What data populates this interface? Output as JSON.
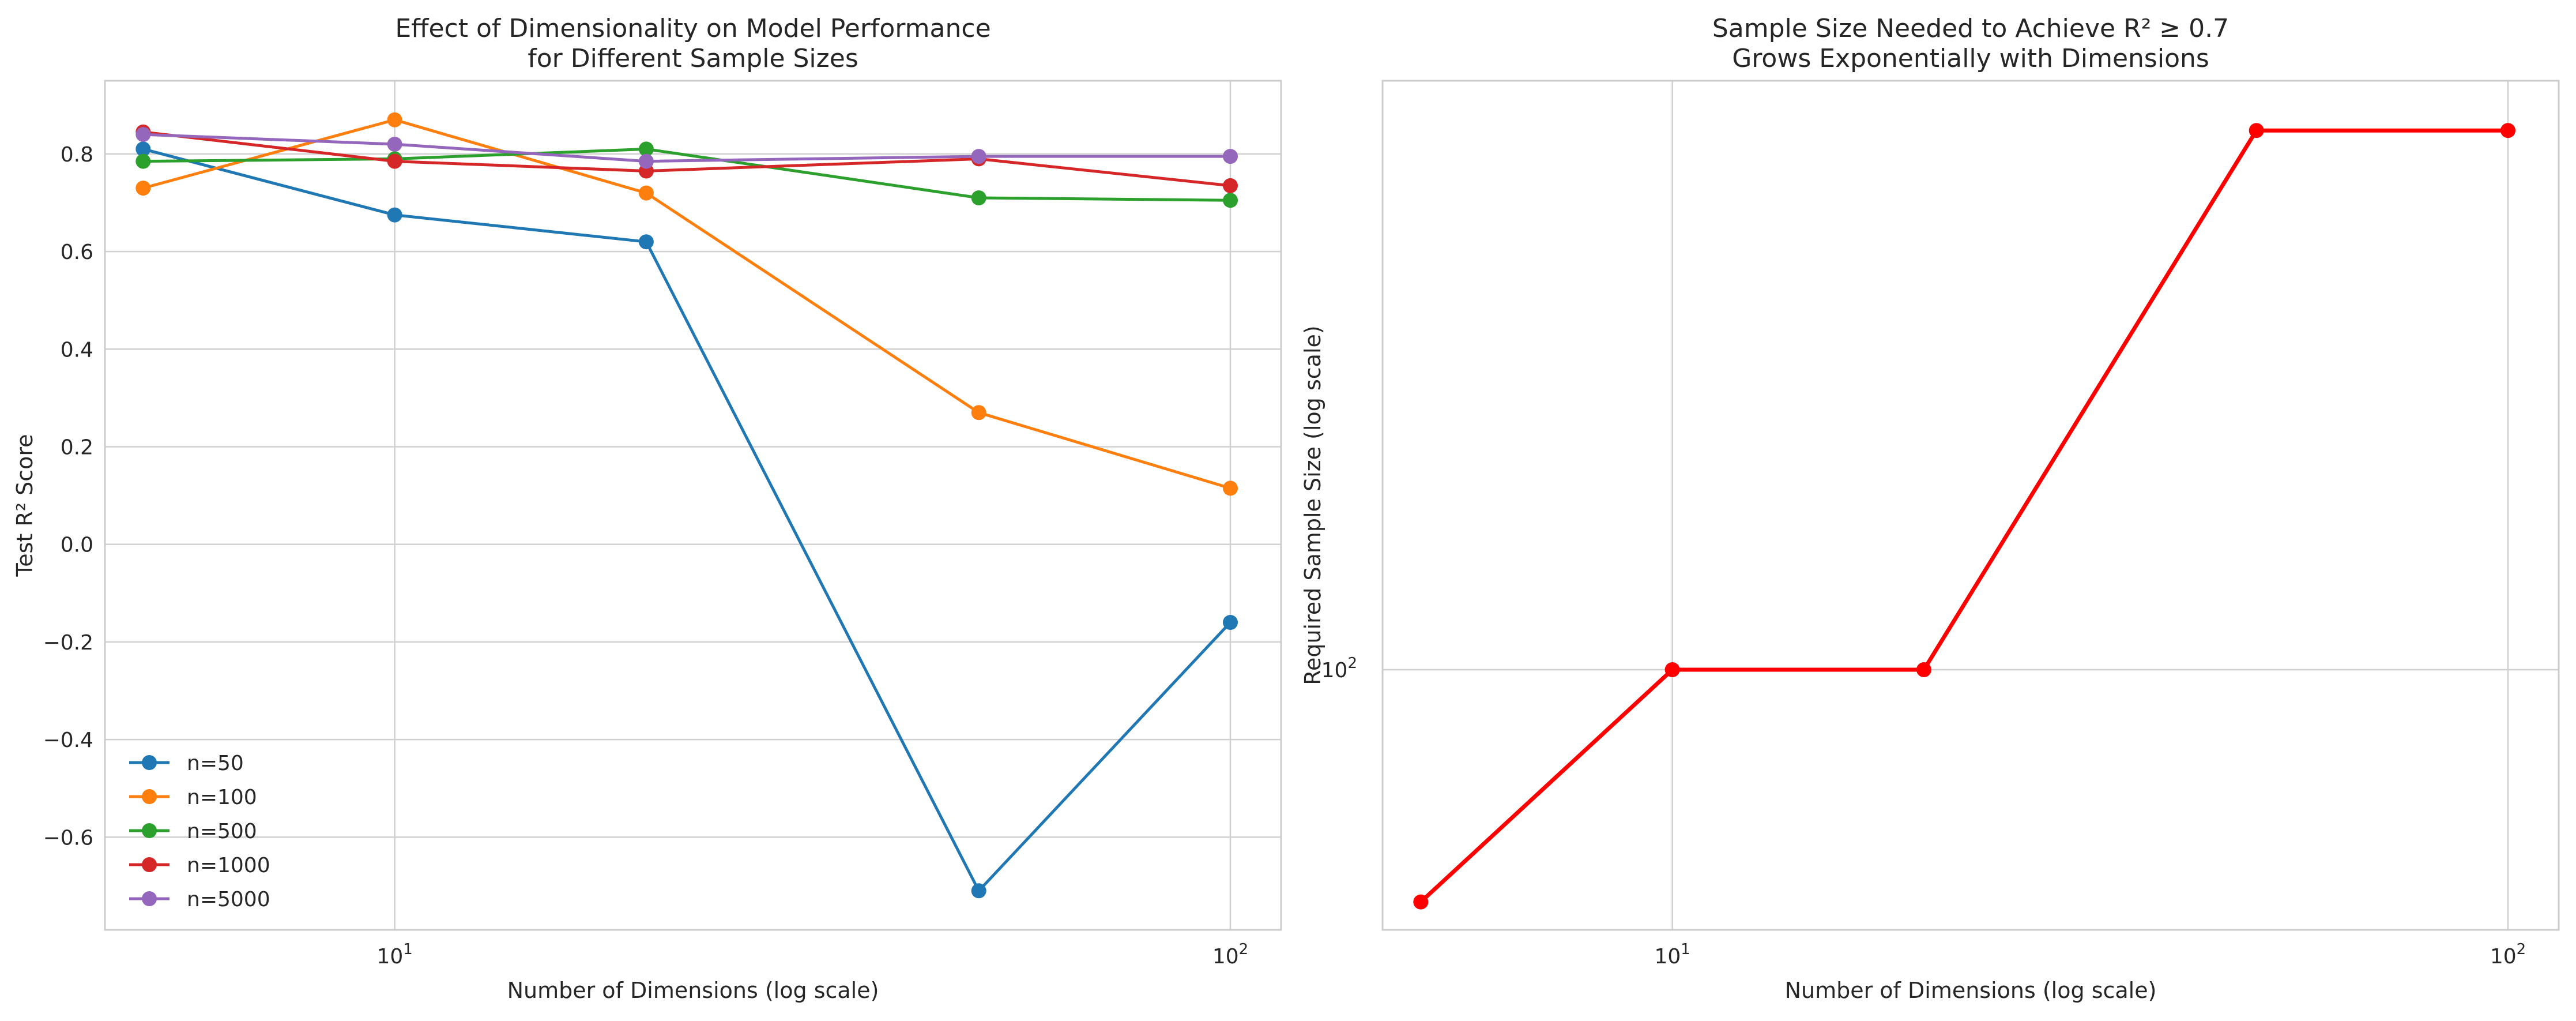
{
  "chart_data": [
    {
      "type": "line",
      "title": "Effect of Dimensionality on Model Performance\nfor Different Sample Sizes",
      "xlabel": "Number of Dimensions (log scale)",
      "ylabel": "Test R² Score",
      "xscale": "log",
      "xlim": [
        4.5,
        115
      ],
      "ylim": [
        -0.79,
        0.95
      ],
      "x": [
        5,
        10,
        20,
        50,
        100
      ],
      "xticks": [
        {
          "value": 10,
          "base": "10",
          "exp": "1"
        },
        {
          "value": 100,
          "base": "10",
          "exp": "2"
        }
      ],
      "yticks": [
        {
          "value": 0.8,
          "label": "0.8"
        },
        {
          "value": 0.6,
          "label": "0.6"
        },
        {
          "value": 0.4,
          "label": "0.4"
        },
        {
          "value": 0.2,
          "label": "0.2"
        },
        {
          "value": 0.0,
          "label": "0.0"
        },
        {
          "value": -0.2,
          "label": "−0.2"
        },
        {
          "value": -0.4,
          "label": "−0.4"
        },
        {
          "value": -0.6,
          "label": "−0.6"
        }
      ],
      "grid": true,
      "legend_position": "lower-left",
      "series": [
        {
          "name": "n=50",
          "color": "#1f77b4",
          "values": [
            0.81,
            0.675,
            0.62,
            -0.71,
            -0.16
          ]
        },
        {
          "name": "n=100",
          "color": "#ff7f0e",
          "values": [
            0.73,
            0.87,
            0.72,
            0.27,
            0.115
          ]
        },
        {
          "name": "n=500",
          "color": "#2ca02c",
          "values": [
            0.785,
            0.79,
            0.81,
            0.71,
            0.705
          ]
        },
        {
          "name": "n=1000",
          "color": "#d62728",
          "values": [
            0.845,
            0.785,
            0.765,
            0.79,
            0.735
          ]
        },
        {
          "name": "n=5000",
          "color": "#9467bd",
          "values": [
            0.84,
            0.82,
            0.785,
            0.795,
            0.795
          ]
        }
      ]
    },
    {
      "type": "line",
      "title": "Sample Size Needed to Achieve R² ≥ 0.7\nGrows Exponentially with Dimensions",
      "xlabel": "Number of Dimensions (log scale)",
      "ylabel": "Required Sample Size (log scale)",
      "xscale": "log",
      "yscale": "log",
      "xlim": [
        4.5,
        115
      ],
      "ylim": [
        46,
        580
      ],
      "x": [
        5,
        10,
        20,
        50,
        100
      ],
      "xticks": [
        {
          "value": 10,
          "base": "10",
          "exp": "1"
        },
        {
          "value": 100,
          "base": "10",
          "exp": "2"
        }
      ],
      "yticks": [
        {
          "value": 100,
          "base": "10",
          "exp": "2"
        }
      ],
      "grid": true,
      "series": [
        {
          "color": "#ff0000",
          "values": [
            50,
            100,
            100,
            500,
            500
          ]
        }
      ]
    }
  ]
}
